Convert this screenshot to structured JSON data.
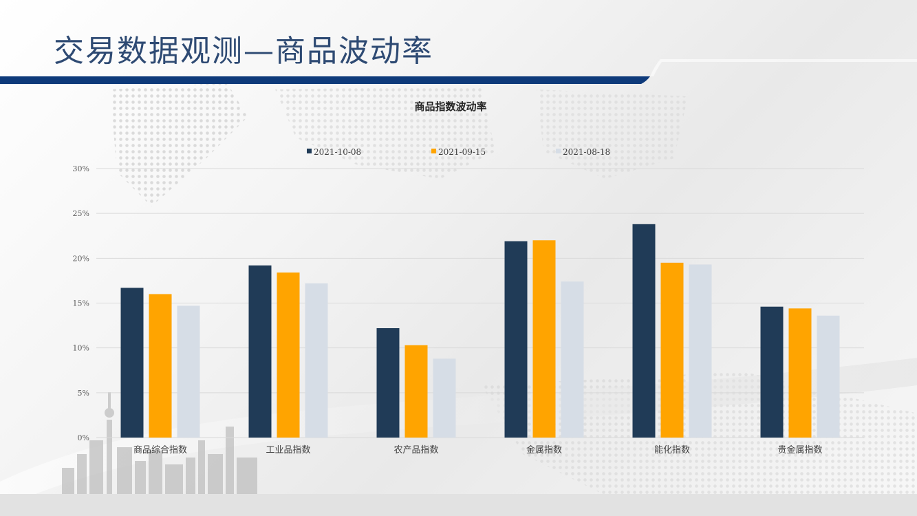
{
  "page": {
    "title": "交易数据观测—商品波动率"
  },
  "colors": {
    "header_blue": "#0e3a7a",
    "series_1": "#203b57",
    "series_2": "#ffa400",
    "series_3": "#d6dde6"
  },
  "chart_data": {
    "type": "bar",
    "title": "商品指数波动率",
    "categories": [
      "商品综合指数",
      "工业品指数",
      "农产品指数",
      "金属指数",
      "能化指数",
      "贵金属指数"
    ],
    "series": [
      {
        "name": "2021-10-08",
        "color": "#203b57",
        "values": [
          16.7,
          19.2,
          12.2,
          21.9,
          23.8,
          14.6
        ]
      },
      {
        "name": "2021-09-15",
        "color": "#ffa400",
        "values": [
          16.0,
          18.4,
          10.3,
          22.0,
          19.5,
          14.4
        ]
      },
      {
        "name": "2021-08-18",
        "color": "#d6dde6",
        "values": [
          14.7,
          17.2,
          8.8,
          17.4,
          19.3,
          13.6
        ]
      }
    ],
    "ylim": [
      0,
      30
    ],
    "yticks": [
      0,
      5,
      10,
      15,
      20,
      25,
      30
    ],
    "ytick_labels": [
      "0%",
      "5%",
      "10%",
      "15%",
      "20%",
      "25%",
      "30%"
    ],
    "grid": true,
    "legend_position": "top"
  }
}
